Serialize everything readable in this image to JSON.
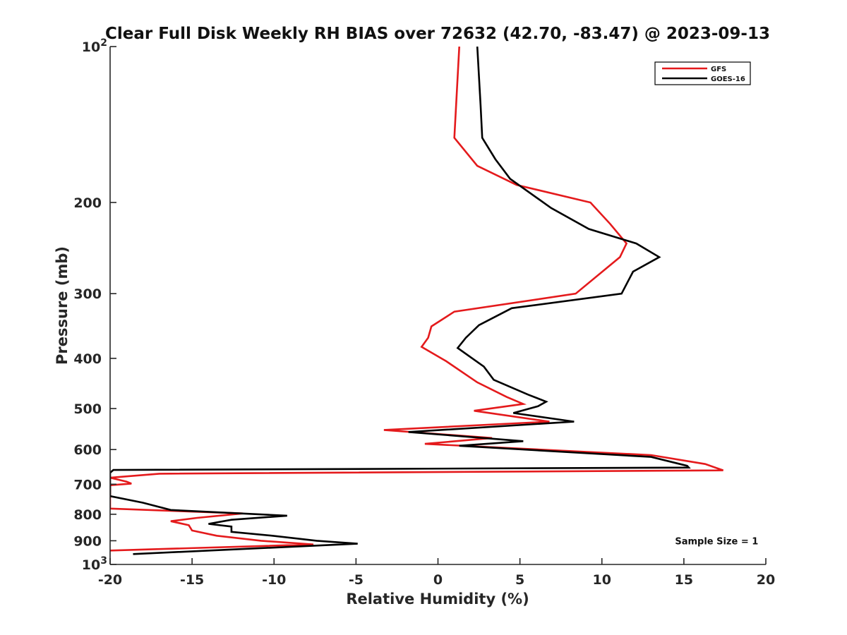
{
  "chart_data": {
    "type": "line",
    "title": "Clear Full Disk Weekly RH BIAS over 72632 (42.70, -83.47) @ 2023-09-13",
    "xlabel": "Relative Humidity (%)",
    "ylabel": "Pressure (mb)",
    "xlim": [
      -20,
      20
    ],
    "ylim": [
      1000,
      100
    ],
    "y_scale": "log",
    "y_reversed": true,
    "grid": false,
    "legend_position": "top-right",
    "x_ticks": [
      {
        "value": -20,
        "label": "-20"
      },
      {
        "value": -15,
        "label": "-15"
      },
      {
        "value": -10,
        "label": "-10"
      },
      {
        "value": -5,
        "label": "-5"
      },
      {
        "value": 0,
        "label": "0"
      },
      {
        "value": 5,
        "label": "5"
      },
      {
        "value": 10,
        "label": "10"
      },
      {
        "value": 15,
        "label": "15"
      },
      {
        "value": 20,
        "label": "20"
      }
    ],
    "y_ticks": [
      {
        "value": 100,
        "base": "10",
        "exp": "2"
      },
      {
        "value": 200,
        "base": "200",
        "exp": ""
      },
      {
        "value": 300,
        "base": "300",
        "exp": ""
      },
      {
        "value": 400,
        "base": "400",
        "exp": ""
      },
      {
        "value": 500,
        "base": "500",
        "exp": ""
      },
      {
        "value": 600,
        "base": "600",
        "exp": ""
      },
      {
        "value": 700,
        "base": "700",
        "exp": ""
      },
      {
        "value": 800,
        "base": "800",
        "exp": ""
      },
      {
        "value": 900,
        "base": "900",
        "exp": ""
      },
      {
        "value": 1000,
        "base": "10",
        "exp": "3"
      }
    ],
    "series": [
      {
        "name": "GFS",
        "color": "#e41a1c",
        "points": [
          [
            1.3,
            100
          ],
          [
            1.0,
            150
          ],
          [
            2.4,
            170
          ],
          [
            4.8,
            185
          ],
          [
            9.3,
            200
          ],
          [
            10.5,
            220
          ],
          [
            11.5,
            240
          ],
          [
            11.1,
            255
          ],
          [
            8.4,
            300
          ],
          [
            1.0,
            325
          ],
          [
            -0.4,
            347
          ],
          [
            -0.6,
            365
          ],
          [
            -1.0,
            380
          ],
          [
            0.5,
            405
          ],
          [
            2.4,
            445
          ],
          [
            4.2,
            475
          ],
          [
            5.2,
            490
          ],
          [
            2.2,
            505
          ],
          [
            6.8,
            530
          ],
          [
            -3.3,
            550
          ],
          [
            3.3,
            570
          ],
          [
            -0.8,
            585
          ],
          [
            13.0,
            615
          ],
          [
            16.3,
            640
          ],
          [
            17.4,
            658
          ],
          [
            -17.0,
            668
          ],
          [
            -20.0,
            680
          ],
          [
            -19.0,
            692
          ],
          [
            -18.7,
            698
          ],
          [
            -20.0,
            703
          ],
          [
            -20.0,
            780
          ],
          [
            -11.9,
            797
          ],
          [
            -14.7,
            813
          ],
          [
            -16.3,
            825
          ],
          [
            -15.2,
            840
          ],
          [
            -15.0,
            860
          ],
          [
            -13.5,
            880
          ],
          [
            -10.8,
            900
          ],
          [
            -7.6,
            915
          ],
          [
            -20.0,
            940
          ]
        ]
      },
      {
        "name": "GOES-16",
        "color": "#000000",
        "points": [
          [
            2.4,
            100
          ],
          [
            2.6,
            130
          ],
          [
            2.7,
            150
          ],
          [
            3.5,
            165
          ],
          [
            4.4,
            180
          ],
          [
            6.9,
            205
          ],
          [
            9.2,
            225
          ],
          [
            12.1,
            240
          ],
          [
            13.5,
            255
          ],
          [
            11.9,
            272
          ],
          [
            11.2,
            300
          ],
          [
            4.5,
            320
          ],
          [
            2.5,
            345
          ],
          [
            1.7,
            365
          ],
          [
            1.2,
            382
          ],
          [
            2.8,
            415
          ],
          [
            3.4,
            440
          ],
          [
            5.5,
            470
          ],
          [
            6.6,
            485
          ],
          [
            6.1,
            495
          ],
          [
            4.6,
            510
          ],
          [
            8.3,
            530
          ],
          [
            -1.8,
            555
          ],
          [
            5.2,
            578
          ],
          [
            1.3,
            590
          ],
          [
            13.0,
            620
          ],
          [
            15.2,
            645
          ],
          [
            15.3,
            650
          ],
          [
            -19.8,
            657
          ],
          [
            -20.0,
            665
          ],
          [
            -20.0,
            738
          ],
          [
            -18.0,
            760
          ],
          [
            -16.3,
            785
          ],
          [
            -9.2,
            805
          ],
          [
            -12.6,
            820
          ],
          [
            -14.0,
            835
          ],
          [
            -12.6,
            845
          ],
          [
            -12.6,
            865
          ],
          [
            -10.1,
            880
          ],
          [
            -7.4,
            900
          ],
          [
            -4.9,
            912
          ],
          [
            -18.6,
            955
          ]
        ]
      }
    ],
    "annotations": [
      {
        "text": "Sample Size = 1",
        "x": 17.0,
        "y": 900
      }
    ]
  }
}
